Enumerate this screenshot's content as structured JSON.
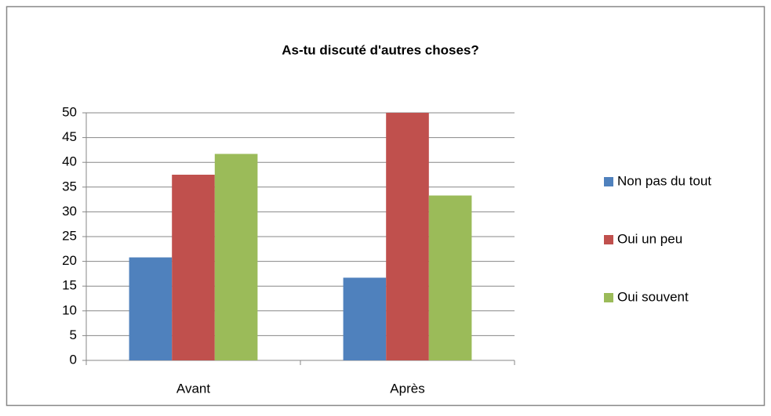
{
  "chart_data": {
    "type": "bar",
    "title": "As-tu discuté d'autres choses?",
    "categories": [
      "Avant",
      "Après"
    ],
    "series": [
      {
        "name": "Non pas du tout",
        "color": "#4f81bd",
        "values": [
          20.8,
          16.7
        ]
      },
      {
        "name": "Oui un peu",
        "color": "#c0504d",
        "values": [
          37.5,
          50
        ]
      },
      {
        "name": "Oui souvent",
        "color": "#9bbb59",
        "values": [
          41.7,
          33.3
        ]
      }
    ],
    "ylim": [
      0,
      50
    ],
    "yticks": [
      0,
      5,
      10,
      15,
      20,
      25,
      30,
      35,
      40,
      45,
      50
    ],
    "grid": true,
    "legend": "right"
  }
}
